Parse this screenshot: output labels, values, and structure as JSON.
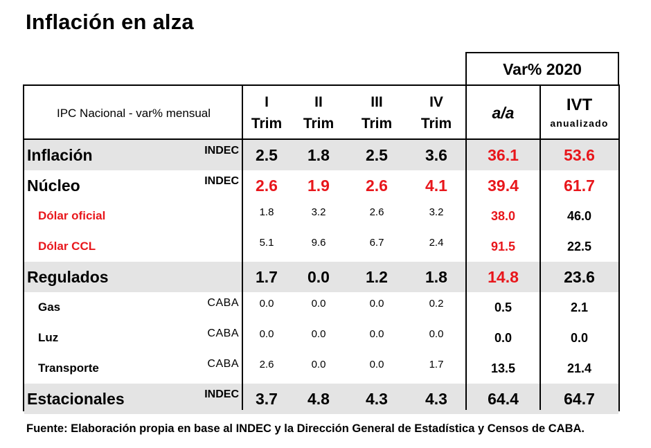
{
  "title": "Inflación en alza",
  "group_header": "Var% 2020",
  "header": {
    "row_label": "IPC Nacional - var% mensual",
    "quarters": [
      {
        "line1": "I",
        "line2": "Trim"
      },
      {
        "line1": "II",
        "line2": "Trim"
      },
      {
        "line1": "III",
        "line2": "Trim"
      },
      {
        "line1": "IV",
        "line2": "Trim"
      }
    ],
    "aa": "a/a",
    "ivt": "IVT",
    "ivt_sub": "anualizado"
  },
  "chart_data": {
    "type": "table",
    "columns": [
      "I Trim",
      "II Trim",
      "III Trim",
      "IV Trim",
      "a/a",
      "IVT anualizado"
    ],
    "rows": [
      {
        "label": "Inflación",
        "source": "INDEC",
        "style": "major",
        "shade": true,
        "red_quarters": false,
        "red_aa": true,
        "red_ivt": true,
        "values": [
          "2.5",
          "1.8",
          "2.5",
          "3.6",
          "36.1",
          "53.6"
        ]
      },
      {
        "label": "Núcleo",
        "source": "INDEC",
        "style": "major",
        "shade": false,
        "red_quarters": true,
        "red_aa": true,
        "red_ivt": true,
        "values": [
          "2.6",
          "1.9",
          "2.6",
          "4.1",
          "39.4",
          "61.7"
        ]
      },
      {
        "label": "Dólar oficial",
        "source": "",
        "style": "minor-red",
        "shade": false,
        "red_quarters": false,
        "red_aa": true,
        "red_ivt": false,
        "values": [
          "1.8",
          "3.2",
          "2.6",
          "3.2",
          "38.0",
          "46.0"
        ]
      },
      {
        "label": "Dólar CCL",
        "source": "",
        "style": "minor-red",
        "shade": false,
        "red_quarters": false,
        "red_aa": true,
        "red_ivt": false,
        "values": [
          "5.1",
          "9.6",
          "6.7",
          "2.4",
          "91.5",
          "22.5"
        ]
      },
      {
        "label": "Regulados",
        "source": "",
        "style": "major",
        "shade": true,
        "red_quarters": false,
        "red_aa": true,
        "red_ivt": false,
        "values": [
          "1.7",
          "0.0",
          "1.2",
          "1.8",
          "14.8",
          "23.6"
        ]
      },
      {
        "label": "Gas",
        "source": "CABA",
        "style": "minor",
        "shade": false,
        "red_quarters": false,
        "red_aa": false,
        "red_ivt": false,
        "values": [
          "0.0",
          "0.0",
          "0.0",
          "0.2",
          "0.5",
          "2.1"
        ]
      },
      {
        "label": "Luz",
        "source": "CABA",
        "style": "minor",
        "shade": false,
        "red_quarters": false,
        "red_aa": false,
        "red_ivt": false,
        "values": [
          "0.0",
          "0.0",
          "0.0",
          "0.0",
          "0.0",
          "0.0"
        ]
      },
      {
        "label": "Transporte",
        "source": "CABA",
        "style": "minor",
        "shade": false,
        "red_quarters": false,
        "red_aa": false,
        "red_ivt": false,
        "values": [
          "2.6",
          "0.0",
          "0.0",
          "1.7",
          "13.5",
          "21.4"
        ]
      },
      {
        "label": "Estacionales",
        "source": "INDEC",
        "style": "major",
        "shade": true,
        "red_quarters": false,
        "red_aa": false,
        "red_ivt": false,
        "values": [
          "3.7",
          "4.8",
          "4.3",
          "4.3",
          "64.4",
          "64.7"
        ]
      }
    ]
  },
  "colors": {
    "red": "#e8161b",
    "shade": "#e4e4e4",
    "shade_light": "#f3f3f3"
  },
  "footer": "Fuente: Elaboración propia en base al INDEC y la Dirección General de Estadística y Censos de CABA."
}
